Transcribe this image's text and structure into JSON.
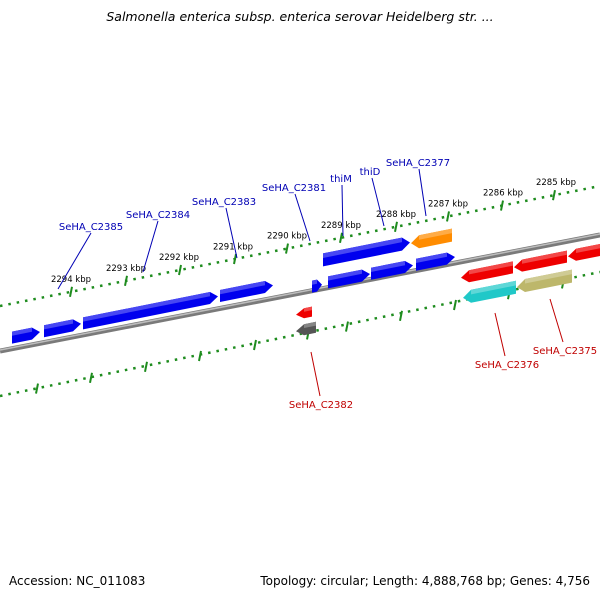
{
  "title": "Salmonella enterica subsp. enterica serovar Heidelberg str. ...",
  "footer": {
    "accession": "Accession: NC_011083",
    "topology": "Topology: circular; Length: 4,888,768 bp; Genes: 4,756"
  },
  "colors": {
    "background": "#ffffff",
    "backbone": "#888888",
    "tick": "#1e8c1e",
    "forward_gene": "#0000ee",
    "reverse_gene": "#ee0000",
    "forward_label": "#0000b4",
    "reverse_label": "#c00000",
    "orange_gene": "#ff8c00",
    "cyan_gene": "#20c8c8",
    "khaki_gene": "#bdb76b",
    "gray_gene": "#555555"
  },
  "kbp_ticks": [
    "2285 kbp",
    "2286 kbp",
    "2287 kbp",
    "2288 kbp",
    "2289 kbp",
    "2290 kbp",
    "2291 kbp",
    "2292 kbp",
    "2293 kbp",
    "2294 kbp"
  ],
  "gene_labels_forward": [
    "SeHA_C2385",
    "SeHA_C2384",
    "SeHA_C2383",
    "SeHA_C2381",
    "thiM",
    "thiD",
    "SeHA_C2377"
  ],
  "gene_labels_reverse": [
    "SeHA_C2382",
    "SeHA_C2376",
    "SeHA_C2375"
  ]
}
